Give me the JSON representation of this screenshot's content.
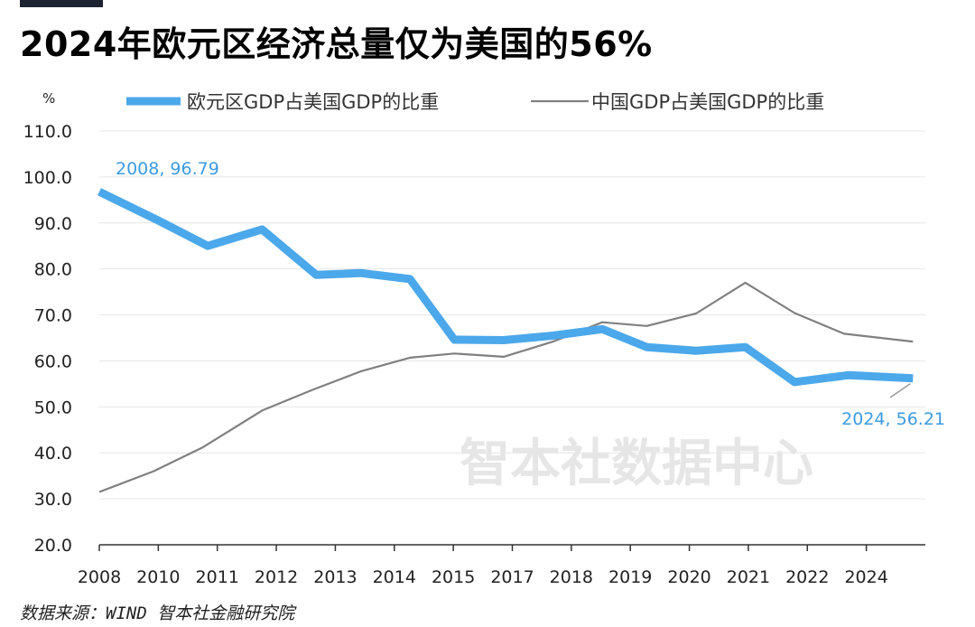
{
  "title": "2024年欧元区经济总量仅为美国的56%",
  "source": "数据来源：WIND 智本社金融研究院",
  "watermark": "智本社数据中心",
  "colors": {
    "euro": "#4ba8ea",
    "china": "#808080",
    "label": "#3c9be0",
    "grid": "#e6e6e6",
    "axis": "#333333"
  },
  "chart_data": {
    "type": "line",
    "yunit": "%",
    "ylim": [
      20,
      110
    ],
    "yticks": [
      "20.0",
      "30.0",
      "40.0",
      "50.0",
      "60.0",
      "70.0",
      "80.0",
      "90.0",
      "100.0",
      "110.0"
    ],
    "xlim": [
      2008,
      2024.75
    ],
    "xticks": [
      "2008",
      "2010",
      "2011",
      "2012",
      "2013",
      "2014",
      "2015",
      "2017",
      "2018",
      "2019",
      "2020",
      "2021",
      "2022",
      "2024"
    ],
    "grid": true,
    "legend_position": "top",
    "series": [
      {
        "name": "欧元区GDP占美国GDP的比重",
        "x": [
          2008,
          2009.2,
          2010.2,
          2011.3,
          2012.4,
          2013.3,
          2014.3,
          2015.2,
          2016.2,
          2017.2,
          2018.2,
          2019.1,
          2020.1,
          2021.1,
          2022.1,
          2023.2,
          2024.5
        ],
        "y": [
          96.79,
          90.5,
          85,
          88.6,
          78.7,
          79.1,
          77.8,
          64.6,
          64.5,
          65.5,
          66.9,
          63,
          62.2,
          63,
          55.4,
          56.9,
          56.21
        ]
      },
      {
        "name": "中国GDP占美国GDP的比重",
        "x": [
          2008,
          2009.1,
          2010.1,
          2011.3,
          2012.3,
          2013.3,
          2014.3,
          2015.2,
          2016.2,
          2017.2,
          2018.2,
          2019.1,
          2020.1,
          2021.1,
          2022.1,
          2023.1,
          2024.5
        ],
        "y": [
          31.5,
          36,
          41.2,
          49.2,
          53.6,
          57.7,
          60.7,
          61.6,
          60.9,
          64.2,
          68.4,
          67.6,
          70.3,
          77,
          70.4,
          65.9,
          64.2
        ]
      }
    ],
    "annotations": [
      {
        "text": "2008, 96.79",
        "series": 0,
        "point": 0
      },
      {
        "text": "2024, 56.21",
        "series": 0,
        "point": 16
      }
    ]
  }
}
